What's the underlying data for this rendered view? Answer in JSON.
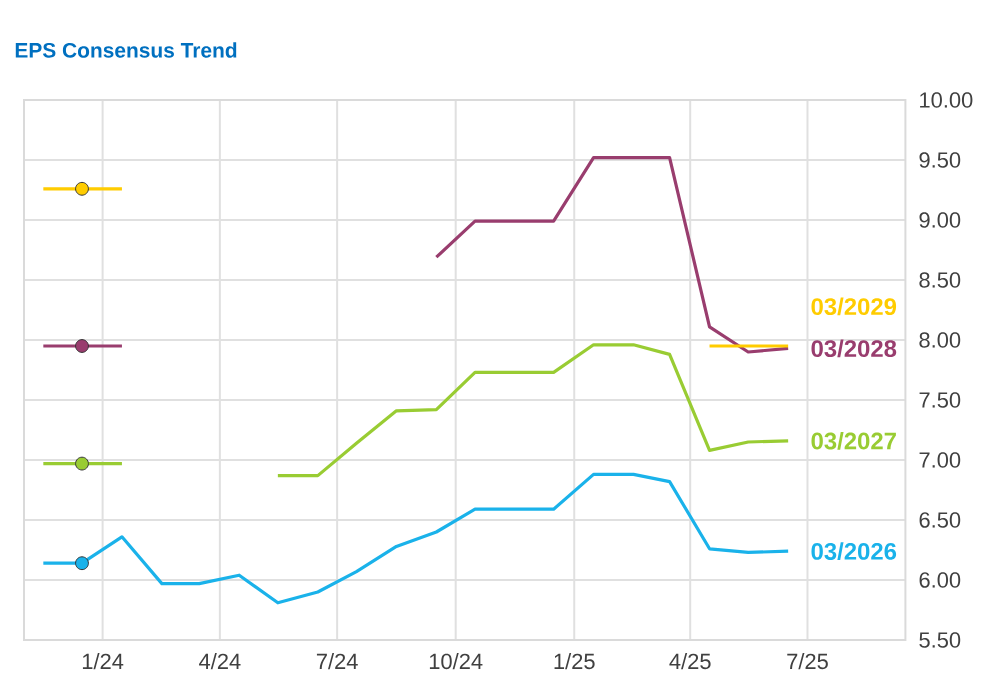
{
  "chart_data": {
    "type": "line",
    "title": "EPS Consensus Trend",
    "xlim": [
      "2023-11-01",
      "2025-09-15"
    ],
    "xticks": [
      {
        "value": "2024-01-01",
        "label": "1/24"
      },
      {
        "value": "2024-04-01",
        "label": "4/24"
      },
      {
        "value": "2024-07-01",
        "label": "7/24"
      },
      {
        "value": "2024-10-01",
        "label": "10/24"
      },
      {
        "value": "2025-01-01",
        "label": "1/25"
      },
      {
        "value": "2025-04-01",
        "label": "4/25"
      },
      {
        "value": "2025-07-01",
        "label": "7/25"
      }
    ],
    "ylim": [
      5.5,
      10.0
    ],
    "yticks": [
      {
        "value": 5.5,
        "label": "5.50"
      },
      {
        "value": 6.0,
        "label": "6.00"
      },
      {
        "value": 6.5,
        "label": "6.50"
      },
      {
        "value": 7.0,
        "label": "7.00"
      },
      {
        "value": 7.5,
        "label": "7.50"
      },
      {
        "value": 8.0,
        "label": "8.00"
      },
      {
        "value": 8.5,
        "label": "8.50"
      },
      {
        "value": 9.0,
        "label": "9.00"
      },
      {
        "value": 9.5,
        "label": "9.50"
      },
      {
        "value": 10.0,
        "label": "10.00"
      }
    ],
    "grid": true,
    "series": [
      {
        "name": "03/2026",
        "color": "#1ab2ea",
        "x": [
          "2023-11-16",
          "2023-12-16",
          "2024-01-16",
          "2024-02-16",
          "2024-03-16",
          "2024-04-16",
          "2024-05-16",
          "2024-06-16",
          "2024-07-16",
          "2024-08-16",
          "2024-09-16",
          "2024-10-16",
          "2024-11-16",
          "2024-12-16",
          "2025-01-16",
          "2025-02-16",
          "2025-03-16",
          "2025-04-16",
          "2025-05-16",
          "2025-06-16"
        ],
        "values": [
          6.14,
          6.14,
          6.36,
          5.97,
          5.97,
          6.04,
          5.81,
          5.9,
          6.07,
          6.28,
          6.4,
          6.59,
          6.59,
          6.59,
          6.88,
          6.88,
          6.82,
          6.26,
          6.23,
          6.24
        ]
      },
      {
        "name": "03/2027",
        "color": "#99cc33",
        "x": [
          "2023-11-16",
          "2023-12-16",
          "2024-01-16",
          "2024-03-16",
          "2024-05-16",
          "2024-06-16",
          "2024-07-16",
          "2024-08-16",
          "2024-09-16",
          "2024-10-16",
          "2024-11-16",
          "2024-12-16",
          "2025-01-16",
          "2025-02-16",
          "2025-03-16",
          "2025-04-16",
          "2025-05-16",
          "2025-06-16"
        ],
        "values": [
          6.97,
          6.97,
          6.97,
          null,
          6.87,
          6.87,
          7.14,
          7.41,
          7.42,
          7.73,
          7.73,
          7.73,
          7.96,
          7.96,
          7.88,
          7.08,
          7.15,
          7.16
        ]
      },
      {
        "name": "03/2028",
        "color": "#993d6e",
        "x": [
          "2023-11-16",
          "2023-12-16",
          "2024-01-16",
          "2024-05-16",
          "2024-09-16",
          "2024-10-16",
          "2024-11-16",
          "2024-12-16",
          "2025-01-16",
          "2025-02-16",
          "2025-03-16",
          "2025-04-16",
          "2025-05-16",
          "2025-06-16"
        ],
        "values": [
          7.95,
          7.95,
          7.95,
          null,
          8.69,
          8.99,
          8.99,
          8.99,
          9.52,
          9.52,
          9.52,
          8.11,
          7.9,
          7.93
        ]
      },
      {
        "name": "03/2029",
        "color": "#ffcc00",
        "x": [
          "2023-11-16",
          "2023-12-16",
          "2024-01-16",
          "2024-08-16",
          "2025-04-16",
          "2025-05-16",
          "2025-06-16"
        ],
        "values": [
          9.26,
          9.26,
          9.26,
          null,
          7.95,
          7.95,
          7.95
        ]
      },
      {
        "type": "scatter",
        "marker": "circle",
        "color": "#1ab2ea",
        "x": [
          "2023-12-16"
        ],
        "values": [
          6.14
        ]
      },
      {
        "type": "scatter",
        "marker": "circle",
        "color": "#99cc33",
        "x": [
          "2023-12-16"
        ],
        "values": [
          6.97
        ]
      },
      {
        "type": "scatter",
        "marker": "circle",
        "color": "#993d6e",
        "x": [
          "2023-12-16"
        ],
        "values": [
          7.95
        ]
      },
      {
        "type": "scatter",
        "marker": "circle",
        "color": "#ffcc00",
        "x": [
          "2023-12-16"
        ],
        "values": [
          9.26
        ]
      }
    ]
  }
}
